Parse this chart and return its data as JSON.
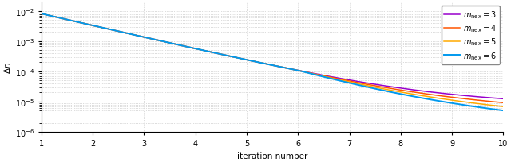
{
  "title": "",
  "xlabel": "iteration number",
  "ylabel": "$\\Delta r_i$",
  "xlim": [
    1,
    10
  ],
  "ylim": [
    1e-06,
    0.02
  ],
  "xticks": [
    1,
    2,
    3,
    4,
    5,
    6,
    7,
    8,
    9,
    10
  ],
  "series": [
    {
      "label": "$m_{\\mathrm{nex}} = 3$",
      "color": "#9900cc",
      "linewidth": 1.1,
      "m": 3,
      "alpha": 1.0
    },
    {
      "label": "$m_{\\mathrm{nex}} = 4$",
      "color": "#ff5500",
      "linewidth": 1.1,
      "m": 4,
      "alpha": 1.0
    },
    {
      "label": "$m_{\\mathrm{nex}} = 5$",
      "color": "#ffaa00",
      "linewidth": 1.1,
      "m": 5,
      "alpha": 1.0
    },
    {
      "label": "$m_{\\mathrm{nex}} = 6$",
      "color": "#0099ee",
      "linewidth": 1.4,
      "m": 6,
      "alpha": 1.0
    }
  ],
  "background_color": "#ffffff",
  "grid_color": "#bbbbbb",
  "legend_fontsize": 7,
  "axis_fontsize": 7.5,
  "tick_fontsize": 7
}
